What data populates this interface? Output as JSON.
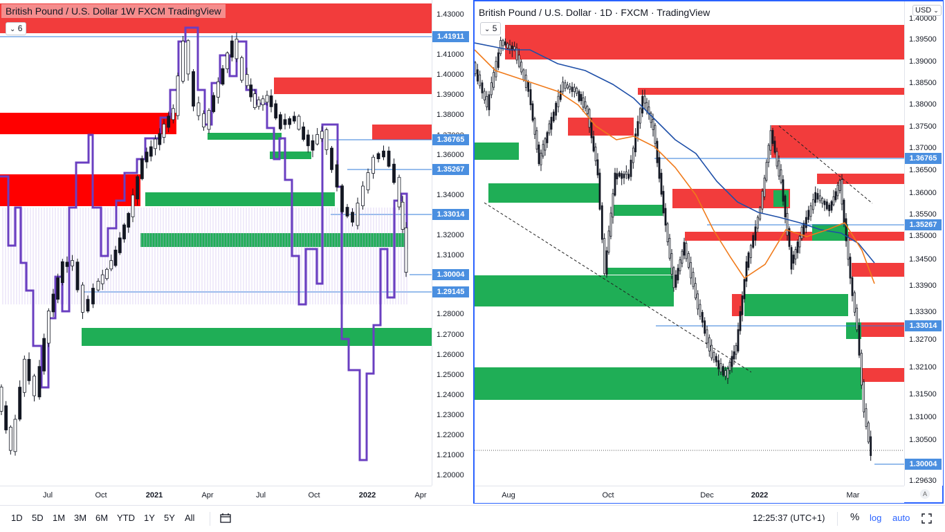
{
  "left_chart": {
    "title": "British Pound / U.S. Dollar   1W   FXCM   TradingView",
    "indicator_badge": "6",
    "price_ticks": [
      "1.43000",
      "1.41000",
      "1.40000",
      "1.39000",
      "1.38000",
      "1.37000",
      "1.36000",
      "1.34000",
      "1.32000",
      "1.31000",
      "1.28000",
      "1.27000",
      "1.26000",
      "1.25000",
      "1.24000",
      "1.23000",
      "1.22000",
      "1.21000",
      "1.20000"
    ],
    "price_labels": [
      "1.41911",
      "1.36765",
      "1.35267",
      "1.33014",
      "1.30004",
      "1.29145"
    ],
    "time_ticks": [
      "Jul",
      "Oct",
      "2021",
      "Apr",
      "Jul",
      "Oct",
      "2022",
      "Apr"
    ]
  },
  "right_chart": {
    "title": "British Pound / U.S. Dollar · 1D · FXCM · TradingView",
    "indicator_badge": "5",
    "currency": "USD",
    "price_ticks": [
      "1.40000",
      "1.39500",
      "1.39000",
      "1.38500",
      "1.38000",
      "1.37500",
      "1.37000",
      "1.36500",
      "1.36000",
      "1.35500",
      "1.35000",
      "1.34500",
      "1.33900",
      "1.33300",
      "1.32700",
      "1.32100",
      "1.31500",
      "1.31000",
      "1.30500",
      "1.29630"
    ],
    "price_labels": [
      "1.36765",
      "1.35267",
      "1.33014",
      "1.30004"
    ],
    "time_ticks": [
      "Aug",
      "Oct",
      "Dec",
      "2022",
      "Mar"
    ],
    "auto_scale_label": "A"
  },
  "toolbar": {
    "timeframes": [
      "1D",
      "5D",
      "1M",
      "3M",
      "6M",
      "YTD",
      "1Y",
      "5Y",
      "All"
    ],
    "clock": "12:25:37 (UTC+1)",
    "percent_label": "%",
    "log_label": "log",
    "auto_label": "auto"
  },
  "colors": {
    "supply": "#f23c3c",
    "demand": "#1fae56",
    "label_bg": "#4a8fe0",
    "accent_blue": "#2962ff",
    "volume_profile": "#6a3fc1",
    "ma_slow": "#1e4fa8",
    "ma_fast": "#f07a1a"
  }
}
